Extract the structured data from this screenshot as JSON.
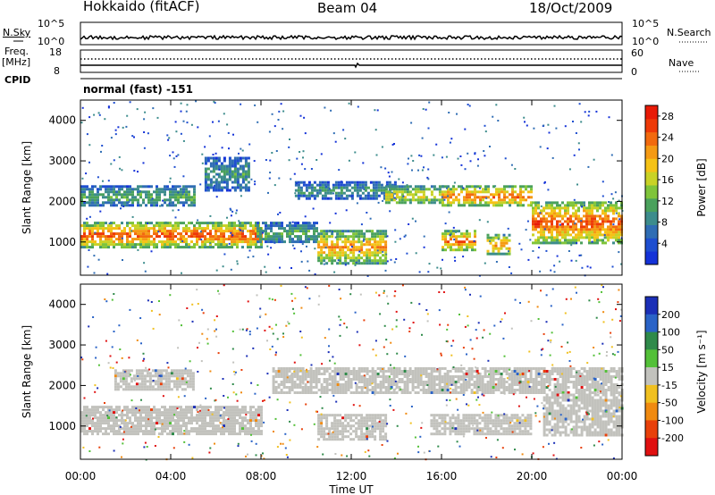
{
  "header": {
    "site": "Hokkaido (fitACF)",
    "beam": "Beam 04",
    "date": "18/Oct/2009"
  },
  "top_panels": {
    "nsky_label": "N.Sky",
    "nsearch_label": "N.Search",
    "noise_ticks_left": [
      "10^5",
      "10^0"
    ],
    "noise_ticks_right": [
      "10^5",
      "10^0"
    ],
    "freq_label": "Freq.",
    "freq_unit": "[MHz]",
    "freq_ticks": [
      "18",
      "8"
    ],
    "nave_label": "Nave",
    "nave_ticks": [
      "60",
      "0"
    ],
    "cpid_label": "CPID",
    "mode_text": "normal (fast) -151"
  },
  "colors": {
    "power_scale": [
      "#1432d8",
      "#1e4ed0",
      "#2f6db4",
      "#3c8c8c",
      "#4aa15c",
      "#7fc43a",
      "#c9d226",
      "#f5c216",
      "#f59a14",
      "#f26a0e",
      "#ee3a08",
      "#e81a06"
    ],
    "velocity_scale": [
      "#1b2fb7",
      "#2a63c7",
      "#2f8a4a",
      "#53c038",
      "#c2c2bd",
      "#f0c020",
      "#f08a10",
      "#e8400a",
      "#e01010"
    ],
    "ground_scatter": "#c2c2bd"
  },
  "chart_data": [
    {
      "type": "heatmap",
      "parameter": "Power",
      "ylabel": "Slant Range [km]",
      "yticks": [
        "1000",
        "2000",
        "3000",
        "4000"
      ],
      "ylim": [
        180,
        4500
      ],
      "xlim": [
        0,
        24
      ],
      "colorbar": {
        "label": "Power [dB]",
        "ticks": [
          "4",
          "8",
          "12",
          "16",
          "20",
          "24",
          "28"
        ],
        "range": [
          0,
          30
        ]
      },
      "echo_regions": [
        {
          "t_start": 0.0,
          "t_end": 8.0,
          "r_low": 900,
          "r_high": 1500,
          "power": 26
        },
        {
          "t_start": 0.0,
          "t_end": 5.0,
          "r_low": 1900,
          "r_high": 2400,
          "power": 12
        },
        {
          "t_start": 5.5,
          "t_end": 7.5,
          "r_low": 2300,
          "r_high": 3100,
          "power": 10
        },
        {
          "t_start": 7.8,
          "t_end": 10.5,
          "r_low": 1000,
          "r_high": 1500,
          "power": 12
        },
        {
          "t_start": 10.5,
          "t_end": 13.5,
          "r_low": 500,
          "r_high": 1300,
          "power": 22
        },
        {
          "t_start": 9.5,
          "t_end": 14.0,
          "r_low": 2100,
          "r_high": 2500,
          "power": 10
        },
        {
          "t_start": 13.5,
          "t_end": 16.0,
          "r_low": 1950,
          "r_high": 2400,
          "power": 18
        },
        {
          "t_start": 16.0,
          "t_end": 20.0,
          "r_low": 1900,
          "r_high": 2400,
          "power": 24
        },
        {
          "t_start": 16.0,
          "t_end": 17.5,
          "r_low": 800,
          "r_high": 1300,
          "power": 24
        },
        {
          "t_start": 18.0,
          "t_end": 19.0,
          "r_low": 700,
          "r_high": 1200,
          "power": 22
        },
        {
          "t_start": 20.0,
          "t_end": 24.0,
          "r_low": 1000,
          "r_high": 2000,
          "power": 26
        }
      ]
    },
    {
      "type": "heatmap",
      "parameter": "Velocity",
      "ylabel": "Slant Range [km]",
      "yticks": [
        "1000",
        "2000",
        "3000",
        "4000"
      ],
      "ylim": [
        180,
        4500
      ],
      "xlim": [
        0,
        24
      ],
      "xlabel": "Time UT",
      "xticks": [
        "00:00",
        "04:00",
        "08:00",
        "12:00",
        "16:00",
        "20:00",
        "00:00"
      ],
      "colorbar": {
        "label": "Velocity [m s⁻¹]",
        "ticks": [
          "200",
          "100",
          "50",
          "15",
          "-15",
          "-50",
          "-100",
          "-200"
        ],
        "range": [
          -250,
          250
        ]
      },
      "ground_scatter_regions": [
        {
          "t_start": 0.0,
          "t_end": 8.0,
          "r_low": 800,
          "r_high": 1500
        },
        {
          "t_start": 1.5,
          "t_end": 5.0,
          "r_low": 1900,
          "r_high": 2400
        },
        {
          "t_start": 8.5,
          "t_end": 24.0,
          "r_low": 1850,
          "r_high": 2450
        },
        {
          "t_start": 10.5,
          "t_end": 13.5,
          "r_low": 700,
          "r_high": 1300
        },
        {
          "t_start": 15.5,
          "t_end": 20.0,
          "r_low": 800,
          "r_high": 1300
        },
        {
          "t_start": 20.5,
          "t_end": 24.0,
          "r_low": 800,
          "r_high": 1800
        }
      ]
    }
  ]
}
